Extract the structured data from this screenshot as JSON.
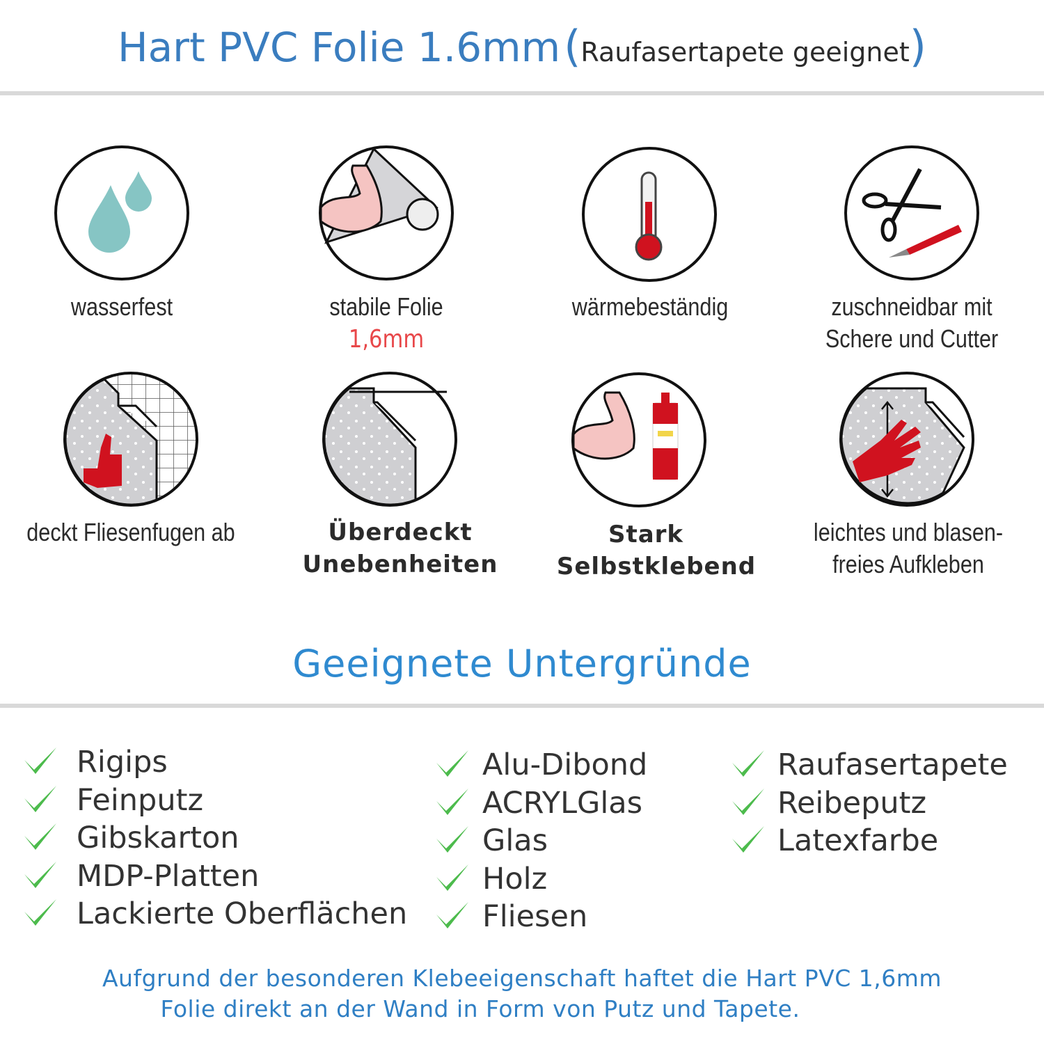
{
  "header": {
    "title": "Hart PVC Folie 1.6mm",
    "paren_open": "(",
    "subtitle": "Raufasertapete geeignet",
    "paren_close": ")"
  },
  "features": [
    {
      "icon": "water-drops-icon",
      "lines": [
        "wasserfest"
      ]
    },
    {
      "icon": "strong-arm-foil-icon",
      "lines": [
        "stabile Folie"
      ],
      "highlight": "1,6mm"
    },
    {
      "icon": "thermometer-icon",
      "lines": [
        "wärmebeständig"
      ]
    },
    {
      "icon": "scissors-cutter-icon",
      "lines": [
        "zuschneidbar mit",
        "Schere und Cutter"
      ]
    },
    {
      "icon": "thumbs-up-tiles-icon",
      "lines": [
        "deckt Fliesenfugen ab"
      ]
    },
    {
      "icon": "peeling-foil-icon",
      "lines": [
        "Überdeckt",
        "Unebenheiten"
      ]
    },
    {
      "icon": "strong-arm-glue-icon",
      "lines": [
        "Stark",
        "Selbstklebend"
      ]
    },
    {
      "icon": "hand-smoothing-icon",
      "lines": [
        "leichtes und blasen-",
        "freies Aufkleben"
      ]
    }
  ],
  "surfaces": {
    "heading": "Geeignete Untergründe",
    "columns": [
      [
        "Rigips",
        "Feinputz",
        "Gibskarton",
        "MDP-Platten",
        "Lackierte Oberflächen"
      ],
      [
        "Alu-Dibond",
        "ACRYLGlas",
        "Glas",
        "Holz",
        "Fliesen"
      ],
      [
        "Raufasertapete",
        "Reibeputz",
        "Latexfarbe"
      ]
    ]
  },
  "footer": {
    "line1": "Aufgrund der besonderen Klebeeigenschaft haftet die Hart PVC 1,6mm",
    "line2": "Folie direkt an der Wand in Form von Putz und Tapete."
  },
  "colors": {
    "title_blue": "#3a7dbf",
    "heading_blue": "#2f8ad0",
    "check_green": "#4cbb4c",
    "accent_red": "#e8484a",
    "icon_red": "#d0121f",
    "drop_teal": "#86c5c4"
  }
}
